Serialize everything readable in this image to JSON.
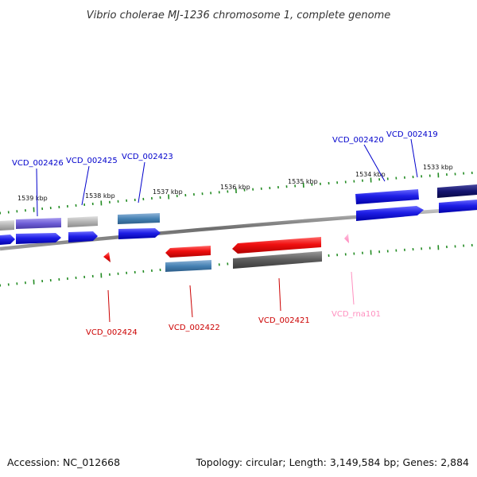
{
  "title": "Vibrio cholerae MJ-1236 chromosome 1, complete genome",
  "accession": "Accession: NC_012668",
  "summary": "Topology: circular; Length: 3,149,584 bp; Genes: 2,884",
  "colors": {
    "backbone": "#808080",
    "ticks": "#228b22",
    "label_plus": "#0000cc",
    "label_minus": "#cc0000",
    "label_rna": "#ff8fbf"
  },
  "scale_labels": [
    "1539 kbp",
    "1538 kbp",
    "1537 kbp",
    "1536 kbp",
    "1535 kbp",
    "1534 kbp",
    "1533 kbp"
  ],
  "gene_labels": {
    "above": [
      "VCD_002426",
      "VCD_002425",
      "VCD_002423",
      "VCD_002420",
      "VCD_002419"
    ],
    "below": [
      "VCD_002424",
      "VCD_002422",
      "VCD_002421",
      "VCD_rna101"
    ]
  },
  "features": [
    {
      "name": "VCD_002426",
      "strand": "+",
      "color": "#2323ee",
      "cog_color": "#7b68dd"
    },
    {
      "name": "VCD_002425",
      "strand": "+",
      "color": "#2323ee",
      "cog_color": "#b8b8b8"
    },
    {
      "name": "VCD_002423",
      "strand": "+",
      "color": "#2323ee",
      "cog_color": "#4682b4"
    },
    {
      "name": "VCD_002420",
      "strand": "+",
      "color": "#2323ee"
    },
    {
      "name": "VCD_002419",
      "strand": "+",
      "color": "#2323ee",
      "cog_color": "#1a1a7a"
    },
    {
      "name": "VCD_002424",
      "strand": "-",
      "color": "#ee1111"
    },
    {
      "name": "VCD_002422",
      "strand": "-",
      "color": "#ee1111",
      "cog_color": "#4682b4"
    },
    {
      "name": "VCD_002421",
      "strand": "-",
      "color": "#ee1111",
      "cog_color": "#606060"
    },
    {
      "name": "VCD_rna101",
      "strand": "-",
      "color": "#ff99cc"
    }
  ]
}
